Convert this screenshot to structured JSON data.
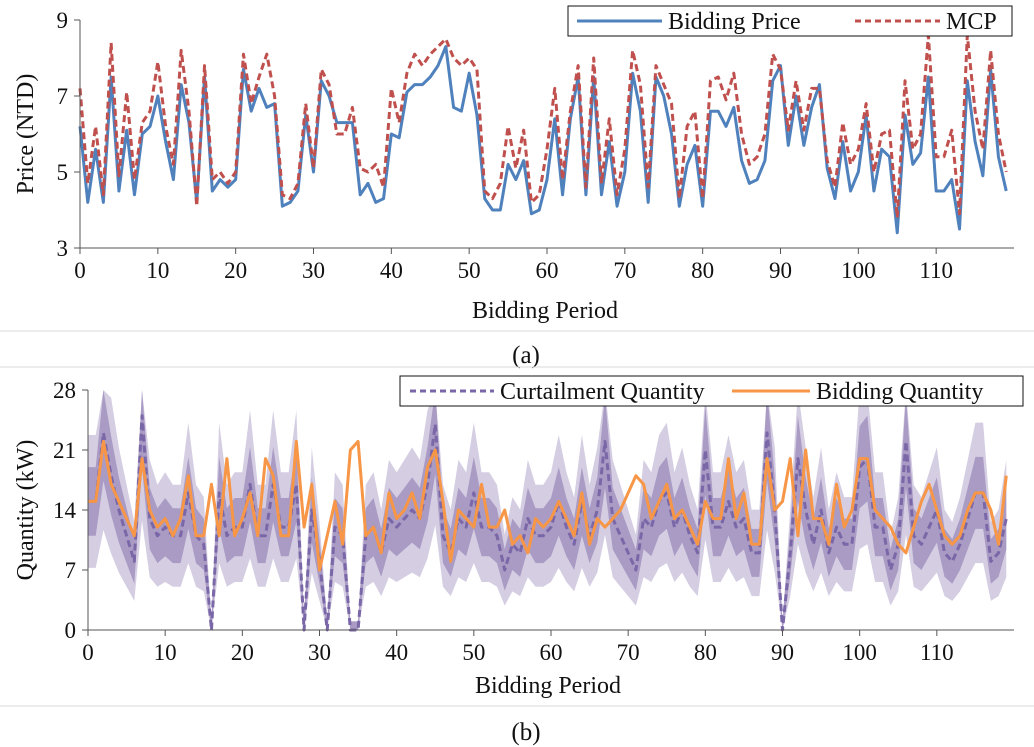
{
  "chart_data": [
    {
      "type": "line",
      "caption": "(a)",
      "xlabel": "Bidding Period",
      "ylabel": "Price (NTD)",
      "xlim": [
        0,
        120
      ],
      "ylim": [
        3,
        9
      ],
      "xticks": [
        0,
        10,
        20,
        30,
        40,
        50,
        60,
        70,
        80,
        90,
        100,
        110
      ],
      "yticks": [
        3,
        5,
        7,
        9
      ],
      "grid": false,
      "legend_position": "top-right",
      "colors": {
        "bidding_price": "#4f81bd",
        "mcp": "#c0504d"
      },
      "series": [
        {
          "name": "Bidding Price",
          "style": "solid",
          "x": [
            0,
            1,
            2,
            3,
            4,
            5,
            6,
            7,
            8,
            9,
            10,
            11,
            12,
            13,
            14,
            15,
            16,
            17,
            18,
            19,
            20,
            21,
            22,
            23,
            24,
            25,
            26,
            27,
            28,
            29,
            30,
            31,
            32,
            33,
            34,
            35,
            36,
            37,
            38,
            39,
            40,
            41,
            42,
            43,
            44,
            45,
            46,
            47,
            48,
            49,
            50,
            51,
            52,
            53,
            54,
            55,
            56,
            57,
            58,
            59,
            60,
            61,
            62,
            63,
            64,
            65,
            66,
            67,
            68,
            69,
            70,
            71,
            72,
            73,
            74,
            75,
            76,
            77,
            78,
            79,
            80,
            81,
            82,
            83,
            84,
            85,
            86,
            87,
            88,
            89,
            90,
            91,
            92,
            93,
            94,
            95,
            96,
            97,
            98,
            99,
            100,
            101,
            102,
            103,
            104,
            105,
            106,
            107,
            108,
            109,
            110,
            111,
            112,
            113,
            114,
            115,
            116,
            117,
            118,
            119
          ],
          "values": [
            6.2,
            4.2,
            5.6,
            4.2,
            7.5,
            4.5,
            6.1,
            4.4,
            6.0,
            6.2,
            7.0,
            5.8,
            4.8,
            7.3,
            6.3,
            4.2,
            7.5,
            4.5,
            4.8,
            4.6,
            4.8,
            7.7,
            6.6,
            7.2,
            6.7,
            6.8,
            4.1,
            4.2,
            4.5,
            6.5,
            5.0,
            7.4,
            7.0,
            6.3,
            6.3,
            6.3,
            4.4,
            4.7,
            4.2,
            4.3,
            6.0,
            5.9,
            7.1,
            7.3,
            7.3,
            7.5,
            7.8,
            8.3,
            6.7,
            6.6,
            7.6,
            6.5,
            4.3,
            4.0,
            4.0,
            5.2,
            4.8,
            5.3,
            3.9,
            4.0,
            4.8,
            6.4,
            4.4,
            6.4,
            7.5,
            4.4,
            7.5,
            4.4,
            5.8,
            4.1,
            5.0,
            7.6,
            6.6,
            4.2,
            7.5,
            7.0,
            6.0,
            4.1,
            5.2,
            5.7,
            4.1,
            6.6,
            6.6,
            6.2,
            6.7,
            5.3,
            4.7,
            4.8,
            5.3,
            7.4,
            7.8,
            5.7,
            7.0,
            5.7,
            6.7,
            7.3,
            5.1,
            4.3,
            5.8,
            4.5,
            5.0,
            6.5,
            4.5,
            5.6,
            5.4,
            3.4,
            6.5,
            5.2,
            5.5,
            7.5,
            4.5,
            4.5,
            4.8,
            3.5,
            7.4,
            5.8,
            4.9,
            7.7,
            5.4,
            4.5
          ]
        },
        {
          "name": "MCP",
          "style": "dashed",
          "x": [
            0,
            1,
            2,
            3,
            4,
            5,
            6,
            7,
            8,
            9,
            10,
            11,
            12,
            13,
            14,
            15,
            16,
            17,
            18,
            19,
            20,
            21,
            22,
            23,
            24,
            25,
            26,
            27,
            28,
            29,
            30,
            31,
            32,
            33,
            34,
            35,
            36,
            37,
            38,
            39,
            40,
            41,
            42,
            43,
            44,
            45,
            46,
            47,
            48,
            49,
            50,
            51,
            52,
            53,
            54,
            55,
            56,
            57,
            58,
            59,
            60,
            61,
            62,
            63,
            64,
            65,
            66,
            67,
            68,
            69,
            70,
            71,
            72,
            73,
            74,
            75,
            76,
            77,
            78,
            79,
            80,
            81,
            82,
            83,
            84,
            85,
            86,
            87,
            88,
            89,
            90,
            91,
            92,
            93,
            94,
            95,
            96,
            97,
            98,
            99,
            100,
            101,
            102,
            103,
            104,
            105,
            106,
            107,
            108,
            109,
            110,
            111,
            112,
            113,
            114,
            115,
            116,
            117,
            118,
            119
          ],
          "values": [
            7.2,
            4.7,
            6.2,
            4.4,
            8.4,
            4.9,
            7.1,
            4.8,
            6.3,
            6.6,
            7.9,
            6.2,
            5.2,
            8.2,
            6.6,
            4.1,
            7.8,
            4.8,
            5.0,
            4.7,
            5.0,
            8.1,
            6.8,
            7.5,
            8.1,
            7.0,
            4.4,
            4.3,
            4.7,
            6.8,
            5.1,
            7.7,
            7.3,
            6.0,
            6.0,
            6.7,
            5.1,
            5.0,
            5.2,
            4.6,
            7.2,
            6.3,
            7.6,
            8.1,
            7.8,
            8.1,
            8.3,
            8.5,
            8.0,
            7.8,
            8.0,
            7.7,
            4.5,
            4.3,
            4.7,
            6.2,
            5.1,
            6.1,
            4.2,
            4.4,
            5.6,
            7.2,
            4.8,
            6.6,
            7.8,
            4.6,
            8.0,
            4.7,
            6.4,
            4.4,
            5.6,
            8.2,
            7.3,
            4.6,
            7.8,
            7.3,
            6.8,
            4.3,
            6.2,
            6.6,
            4.3,
            7.4,
            7.5,
            6.9,
            7.6,
            6.0,
            5.2,
            5.4,
            6.0,
            8.1,
            7.7,
            6.1,
            7.4,
            6.1,
            7.2,
            7.2,
            5.3,
            4.6,
            6.3,
            5.2,
            5.6,
            6.8,
            5.0,
            6.0,
            6.1,
            3.8,
            7.4,
            5.6,
            6.0,
            8.6,
            5.4,
            5.4,
            6.1,
            3.9,
            8.6,
            6.6,
            5.6,
            8.2,
            6.0,
            5.0
          ]
        }
      ]
    },
    {
      "type": "line",
      "caption": "(b)",
      "xlabel": "Bidding Period",
      "ylabel": "Quantity (kW)",
      "xlim": [
        0,
        120
      ],
      "ylim": [
        0,
        28
      ],
      "xticks": [
        0,
        10,
        20,
        30,
        40,
        50,
        60,
        70,
        80,
        90,
        100,
        110
      ],
      "yticks": [
        0,
        7,
        14,
        21,
        28
      ],
      "grid": false,
      "legend_position": "top-right",
      "colors": {
        "curtailment_quantity": "#7a67a8",
        "bidding_quantity": "#f79646",
        "band_inner": "#a99bc4",
        "band_outer": "#d5cee3"
      },
      "series": [
        {
          "name": "Curtailment Quantity",
          "style": "dashed",
          "x": [
            0,
            1,
            2,
            3,
            4,
            5,
            6,
            7,
            8,
            9,
            10,
            11,
            12,
            13,
            14,
            15,
            16,
            17,
            18,
            19,
            20,
            21,
            22,
            23,
            24,
            25,
            26,
            27,
            28,
            29,
            30,
            31,
            32,
            33,
            34,
            35,
            36,
            37,
            38,
            39,
            40,
            41,
            42,
            43,
            44,
            45,
            46,
            47,
            48,
            49,
            50,
            51,
            52,
            53,
            54,
            55,
            56,
            57,
            58,
            59,
            60,
            61,
            62,
            63,
            64,
            65,
            66,
            67,
            68,
            69,
            70,
            71,
            72,
            73,
            74,
            75,
            76,
            77,
            78,
            79,
            80,
            81,
            82,
            83,
            84,
            85,
            86,
            87,
            88,
            89,
            90,
            91,
            92,
            93,
            94,
            95,
            96,
            97,
            98,
            99,
            100,
            101,
            102,
            103,
            104,
            105,
            106,
            107,
            108,
            109,
            110,
            111,
            112,
            113,
            114,
            115,
            116,
            117,
            118,
            119
          ],
          "values": [
            15,
            15,
            23,
            18,
            14,
            11,
            8,
            25,
            13,
            11,
            12,
            11,
            11,
            16,
            11,
            10,
            0,
            16,
            11,
            12,
            12,
            17,
            11,
            11,
            17,
            12,
            12,
            17,
            0,
            14,
            8,
            0,
            12,
            11,
            0,
            0,
            11,
            12,
            9,
            13,
            12,
            13,
            14,
            13,
            17,
            24,
            11,
            9,
            13,
            12,
            16,
            12,
            12,
            11,
            7,
            10,
            9,
            13,
            11,
            11,
            12,
            15,
            12,
            10,
            15,
            11,
            14,
            22,
            13,
            11,
            9,
            7,
            13,
            12,
            15,
            16,
            12,
            14,
            11,
            9,
            21,
            12,
            12,
            15,
            12,
            13,
            9,
            9,
            23,
            14,
            0,
            9,
            20,
            14,
            10,
            14,
            9,
            12,
            10,
            10,
            19,
            20,
            12,
            12,
            7,
            10,
            22,
            11,
            10,
            12,
            14,
            9,
            8,
            10,
            13,
            16,
            16,
            8,
            9,
            13
          ]
        },
        {
          "name": "Bidding Quantity",
          "style": "solid",
          "x": [
            0,
            1,
            2,
            3,
            4,
            5,
            6,
            7,
            8,
            9,
            10,
            11,
            12,
            13,
            14,
            15,
            16,
            17,
            18,
            19,
            20,
            21,
            22,
            23,
            24,
            25,
            26,
            27,
            28,
            29,
            30,
            31,
            32,
            33,
            34,
            35,
            36,
            37,
            38,
            39,
            40,
            41,
            42,
            43,
            44,
            45,
            46,
            47,
            48,
            49,
            50,
            51,
            52,
            53,
            54,
            55,
            56,
            57,
            58,
            59,
            60,
            61,
            62,
            63,
            64,
            65,
            66,
            67,
            68,
            69,
            70,
            71,
            72,
            73,
            74,
            75,
            76,
            77,
            78,
            79,
            80,
            81,
            82,
            83,
            84,
            85,
            86,
            87,
            88,
            89,
            90,
            91,
            92,
            93,
            94,
            95,
            96,
            97,
            98,
            99,
            100,
            101,
            102,
            103,
            104,
            105,
            106,
            107,
            108,
            109,
            110,
            111,
            112,
            113,
            114,
            115,
            116,
            117,
            118,
            119
          ],
          "values": [
            15,
            15,
            22,
            17,
            15,
            13,
            11,
            20,
            14,
            12,
            13,
            11,
            13,
            18,
            11,
            11,
            17,
            11,
            20,
            11,
            13,
            16,
            11,
            20,
            18,
            11,
            11,
            22,
            12,
            17,
            7,
            11,
            15,
            10,
            21,
            22,
            11,
            12,
            9,
            16,
            13,
            14,
            16,
            13,
            19,
            21,
            15,
            8,
            14,
            13,
            12,
            17,
            12,
            12,
            14,
            10,
            11,
            9,
            13,
            12,
            13,
            15,
            13,
            11,
            16,
            10,
            13,
            12,
            13,
            14,
            16,
            18,
            17,
            13,
            15,
            17,
            13,
            14,
            12,
            10,
            15,
            13,
            13,
            20,
            13,
            16,
            10,
            10,
            20,
            14,
            15,
            20,
            11,
            21,
            13,
            13,
            10,
            17,
            12,
            14,
            20,
            20,
            14,
            13,
            12,
            10,
            9,
            12,
            15,
            17,
            14,
            11,
            10,
            11,
            14,
            16,
            16,
            14,
            10,
            18
          ]
        }
      ]
    }
  ],
  "legend": {
    "a": {
      "label1": "Bidding Price",
      "label2": "MCP"
    },
    "b": {
      "label1": "Curtailment Quantity",
      "label2": "Bidding Quantity"
    }
  }
}
